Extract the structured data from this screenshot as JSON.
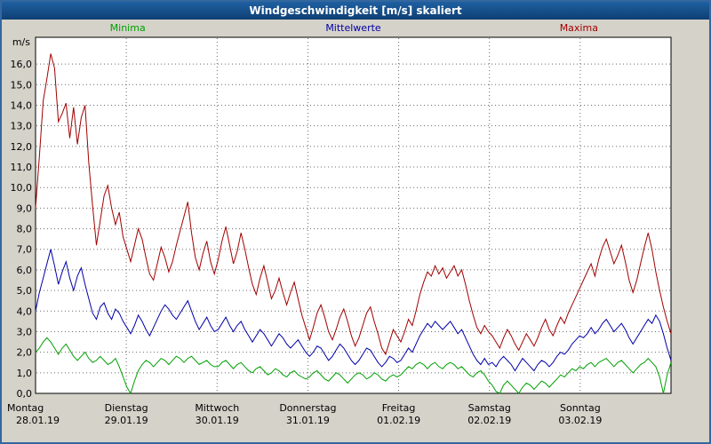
{
  "window": {
    "title": "Windgeschwindigkeit [m/s] skaliert"
  },
  "chart_data": {
    "type": "line",
    "title": "Windgeschwindigkeit [m/s] skaliert",
    "ylabel": "m/s",
    "ylim": [
      0,
      17.3
    ],
    "yticks": {
      "min": 0,
      "max": 16,
      "step": 1
    },
    "ytick_format": "comma-decimal-one-place",
    "grid": "dashed",
    "grid_color": "#6a6a6a",
    "plot_background": "#ffffff",
    "legend_position": "top",
    "x_labels": [
      {
        "day": "Montag",
        "date": "28.01.19"
      },
      {
        "day": "Dienstag",
        "date": "29.01.19"
      },
      {
        "day": "Mittwoch",
        "date": "30.01.19"
      },
      {
        "day": "Donnerstag",
        "date": "31.01.19"
      },
      {
        "day": "Freitag",
        "date": "01.02.19"
      },
      {
        "day": "Samstag",
        "date": "02.02.19"
      },
      {
        "day": "Sonntag",
        "date": "03.02.19"
      }
    ],
    "x_resolution": "hourly, 24 points per day, 7 days",
    "series": [
      {
        "name": "Minima",
        "color": "#00a000",
        "values": [
          2.0,
          2.2,
          2.5,
          2.7,
          2.5,
          2.2,
          1.9,
          2.2,
          2.4,
          2.1,
          1.8,
          1.6,
          1.8,
          2.0,
          1.7,
          1.5,
          1.6,
          1.8,
          1.6,
          1.4,
          1.5,
          1.7,
          1.3,
          0.8,
          0.3,
          0.0,
          0.6,
          1.1,
          1.4,
          1.6,
          1.5,
          1.3,
          1.5,
          1.7,
          1.6,
          1.4,
          1.6,
          1.8,
          1.7,
          1.5,
          1.7,
          1.8,
          1.6,
          1.4,
          1.5,
          1.6,
          1.4,
          1.3,
          1.3,
          1.5,
          1.6,
          1.4,
          1.2,
          1.4,
          1.5,
          1.3,
          1.1,
          1.0,
          1.2,
          1.3,
          1.1,
          0.9,
          1.0,
          1.2,
          1.1,
          0.9,
          0.8,
          1.0,
          1.1,
          0.9,
          0.8,
          0.7,
          0.8,
          1.0,
          1.1,
          0.9,
          0.7,
          0.6,
          0.8,
          1.0,
          0.9,
          0.7,
          0.5,
          0.7,
          0.9,
          1.0,
          0.9,
          0.7,
          0.8,
          1.0,
          0.9,
          0.7,
          0.6,
          0.8,
          0.9,
          0.8,
          0.9,
          1.1,
          1.3,
          1.2,
          1.4,
          1.5,
          1.4,
          1.2,
          1.4,
          1.5,
          1.3,
          1.2,
          1.4,
          1.5,
          1.4,
          1.2,
          1.3,
          1.1,
          0.9,
          0.8,
          1.0,
          1.1,
          0.9,
          0.6,
          0.4,
          0.1,
          0.0,
          0.4,
          0.6,
          0.4,
          0.2,
          0.0,
          0.3,
          0.5,
          0.4,
          0.2,
          0.4,
          0.6,
          0.5,
          0.3,
          0.5,
          0.7,
          0.9,
          0.8,
          1.0,
          1.2,
          1.1,
          1.3,
          1.2,
          1.4,
          1.5,
          1.3,
          1.5,
          1.6,
          1.7,
          1.5,
          1.3,
          1.5,
          1.6,
          1.4,
          1.2,
          1.0,
          1.2,
          1.4,
          1.5,
          1.7,
          1.5,
          1.3,
          0.8,
          0.0,
          0.9,
          1.5
        ]
      },
      {
        "name": "Mittelwerte",
        "color": "#0000a8",
        "values": [
          4.0,
          4.9,
          5.6,
          6.3,
          7.0,
          6.2,
          5.3,
          5.9,
          6.4,
          5.6,
          5.0,
          5.7,
          6.1,
          5.3,
          4.6,
          3.9,
          3.6,
          4.2,
          4.4,
          3.9,
          3.6,
          4.1,
          3.9,
          3.5,
          3.2,
          2.9,
          3.3,
          3.8,
          3.5,
          3.1,
          2.8,
          3.2,
          3.6,
          4.0,
          4.3,
          4.1,
          3.8,
          3.6,
          3.9,
          4.2,
          4.5,
          4.0,
          3.5,
          3.1,
          3.4,
          3.7,
          3.3,
          3.0,
          3.1,
          3.4,
          3.7,
          3.3,
          3.0,
          3.3,
          3.5,
          3.1,
          2.8,
          2.5,
          2.8,
          3.1,
          2.9,
          2.6,
          2.3,
          2.6,
          2.9,
          2.7,
          2.4,
          2.2,
          2.4,
          2.6,
          2.3,
          2.0,
          1.8,
          2.0,
          2.3,
          2.2,
          1.9,
          1.6,
          1.8,
          2.1,
          2.4,
          2.2,
          1.9,
          1.6,
          1.4,
          1.6,
          1.9,
          2.2,
          2.1,
          1.8,
          1.5,
          1.3,
          1.5,
          1.8,
          1.7,
          1.5,
          1.6,
          1.9,
          2.2,
          2.0,
          2.4,
          2.8,
          3.1,
          3.4,
          3.2,
          3.5,
          3.3,
          3.1,
          3.3,
          3.5,
          3.2,
          2.9,
          3.1,
          2.7,
          2.3,
          1.9,
          1.6,
          1.4,
          1.7,
          1.4,
          1.5,
          1.3,
          1.6,
          1.8,
          1.6,
          1.4,
          1.1,
          1.4,
          1.7,
          1.5,
          1.3,
          1.1,
          1.4,
          1.6,
          1.5,
          1.3,
          1.5,
          1.8,
          2.0,
          1.9,
          2.1,
          2.4,
          2.6,
          2.8,
          2.7,
          2.9,
          3.2,
          2.9,
          3.1,
          3.4,
          3.6,
          3.3,
          3.0,
          3.2,
          3.4,
          3.1,
          2.7,
          2.4,
          2.7,
          3.0,
          3.3,
          3.6,
          3.4,
          3.8,
          3.5,
          2.9,
          2.2,
          1.6
        ]
      },
      {
        "name": "Maxima",
        "color": "#a00000",
        "values": [
          9.0,
          11.5,
          14.2,
          15.3,
          16.5,
          15.8,
          13.2,
          13.6,
          14.1,
          12.4,
          13.9,
          12.1,
          13.4,
          14.0,
          11.2,
          9.1,
          7.2,
          8.4,
          9.6,
          10.1,
          9.0,
          8.2,
          8.8,
          7.6,
          7.0,
          6.4,
          7.2,
          8.0,
          7.5,
          6.6,
          5.8,
          5.5,
          6.3,
          7.1,
          6.6,
          5.9,
          6.4,
          7.2,
          7.9,
          8.6,
          9.3,
          7.8,
          6.6,
          6.0,
          6.8,
          7.4,
          6.4,
          5.8,
          6.5,
          7.4,
          8.1,
          7.2,
          6.3,
          6.9,
          7.8,
          7.0,
          6.1,
          5.3,
          4.8,
          5.6,
          6.2,
          5.4,
          4.6,
          5.0,
          5.6,
          4.9,
          4.3,
          4.9,
          5.4,
          4.6,
          3.8,
          3.2,
          2.6,
          3.2,
          3.9,
          4.3,
          3.7,
          3.0,
          2.6,
          3.1,
          3.7,
          4.1,
          3.5,
          2.8,
          2.3,
          2.7,
          3.3,
          3.9,
          4.2,
          3.5,
          2.9,
          2.2,
          1.9,
          2.5,
          3.1,
          2.8,
          2.5,
          3.0,
          3.6,
          3.3,
          4.0,
          4.8,
          5.4,
          5.9,
          5.7,
          6.2,
          5.8,
          6.1,
          5.6,
          5.9,
          6.2,
          5.7,
          6.0,
          5.3,
          4.5,
          3.8,
          3.2,
          2.9,
          3.3,
          3.0,
          2.8,
          2.5,
          2.2,
          2.7,
          3.1,
          2.8,
          2.4,
          2.1,
          2.5,
          2.9,
          2.6,
          2.3,
          2.7,
          3.2,
          3.6,
          3.1,
          2.8,
          3.3,
          3.7,
          3.4,
          3.9,
          4.3,
          4.7,
          5.1,
          5.5,
          5.9,
          6.3,
          5.7,
          6.5,
          7.1,
          7.5,
          6.9,
          6.3,
          6.7,
          7.2,
          6.4,
          5.5,
          4.9,
          5.5,
          6.3,
          7.1,
          7.8,
          7.0,
          5.9,
          5.0,
          4.2,
          3.5,
          2.9
        ]
      }
    ]
  }
}
